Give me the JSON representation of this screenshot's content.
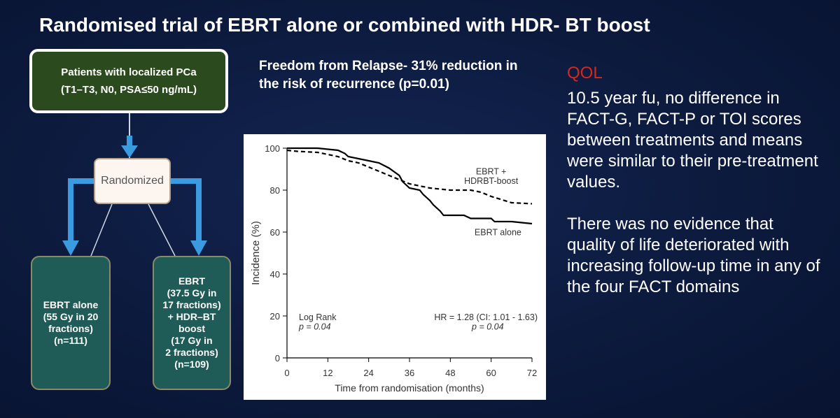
{
  "slide": {
    "title": "Randomised trial of EBRT alone or combined with HDR- BT boost"
  },
  "flowchart": {
    "patients": {
      "line1": "Patients with localized PCa",
      "line2": "(T1–T3, N0, PSA≤50 ng/mL)"
    },
    "randomized": "Randomized",
    "arm_ebrt_alone": [
      "EBRT alone",
      "(55 Gy in 20",
      "fractions)",
      "(n=111)"
    ],
    "arm_ebrt_boost": [
      "EBRT",
      "(37.5 Gy  in",
      "17 fractions)",
      "+ HDR–BT",
      "boost",
      "(17 Gy in",
      "2 fractions)",
      "(n=109)"
    ],
    "colors": {
      "arrow": "#3a9be0",
      "patients_fill": "#2b4a1d",
      "arm_fill": "#1f5b57"
    }
  },
  "freedom_text": "Freedom from Relapse- 31% reduction in the risk of recurrence (p=0.01)",
  "chart_data": {
    "type": "line",
    "xlabel": "Time from randomisation (months)",
    "ylabel": "Incidence (%)",
    "xlim": [
      0,
      72
    ],
    "ylim": [
      0,
      100
    ],
    "xticks": [
      0,
      12,
      24,
      36,
      48,
      60,
      72
    ],
    "yticks": [
      0,
      20,
      40,
      60,
      80,
      100
    ],
    "series": [
      {
        "name": "EBRT alone",
        "style": "solid",
        "points": [
          [
            0,
            100
          ],
          [
            3,
            100
          ],
          [
            9,
            100
          ],
          [
            15,
            99
          ],
          [
            17,
            97.5
          ],
          [
            18,
            96
          ],
          [
            21,
            95
          ],
          [
            24,
            94
          ],
          [
            27,
            93
          ],
          [
            30,
            90.5
          ],
          [
            33,
            87
          ],
          [
            34,
            84
          ],
          [
            36,
            81
          ],
          [
            39,
            80
          ],
          [
            40,
            78
          ],
          [
            42,
            75
          ],
          [
            43,
            73
          ],
          [
            45,
            70
          ],
          [
            46,
            68
          ],
          [
            48,
            68
          ],
          [
            52,
            68
          ],
          [
            54,
            66.5
          ],
          [
            60,
            66.5
          ],
          [
            61,
            65
          ],
          [
            66,
            65
          ],
          [
            72,
            64
          ]
        ]
      },
      {
        "name": "EBRT + HDRBT-boost",
        "style": "dashed",
        "points": [
          [
            0,
            99
          ],
          [
            3,
            98.5
          ],
          [
            9,
            98
          ],
          [
            12,
            97
          ],
          [
            15,
            96
          ],
          [
            18,
            94
          ],
          [
            21,
            93
          ],
          [
            24,
            91
          ],
          [
            27,
            89
          ],
          [
            30,
            87
          ],
          [
            33,
            85
          ],
          [
            36,
            83
          ],
          [
            39,
            82
          ],
          [
            42,
            81
          ],
          [
            45,
            80.5
          ],
          [
            48,
            80
          ],
          [
            51,
            80
          ],
          [
            54,
            80
          ],
          [
            57,
            79
          ],
          [
            60,
            77
          ],
          [
            63,
            75.5
          ],
          [
            66,
            74
          ],
          [
            72,
            73.5
          ]
        ]
      }
    ],
    "annotations": {
      "boost_label": [
        "EBRT +",
        "HDRBT-boost"
      ],
      "alone_label": "EBRT alone",
      "logrank": [
        "Log Rank",
        "p = 0.04"
      ],
      "hr": [
        "HR = 1.28 (CI: 1.01 - 1.63)",
        "p = 0.04"
      ]
    }
  },
  "qol": {
    "title": "QOL",
    "para1": "10.5 year fu, no difference in FACT-G, FACT-P or TOI scores between treatments and means were similar to their pre-treatment values.",
    "para2": "There was no evidence that quality of life deteriorated with increasing follow-up time in any of the four FACT domains",
    "colors": {
      "title": "#d9261c"
    }
  }
}
